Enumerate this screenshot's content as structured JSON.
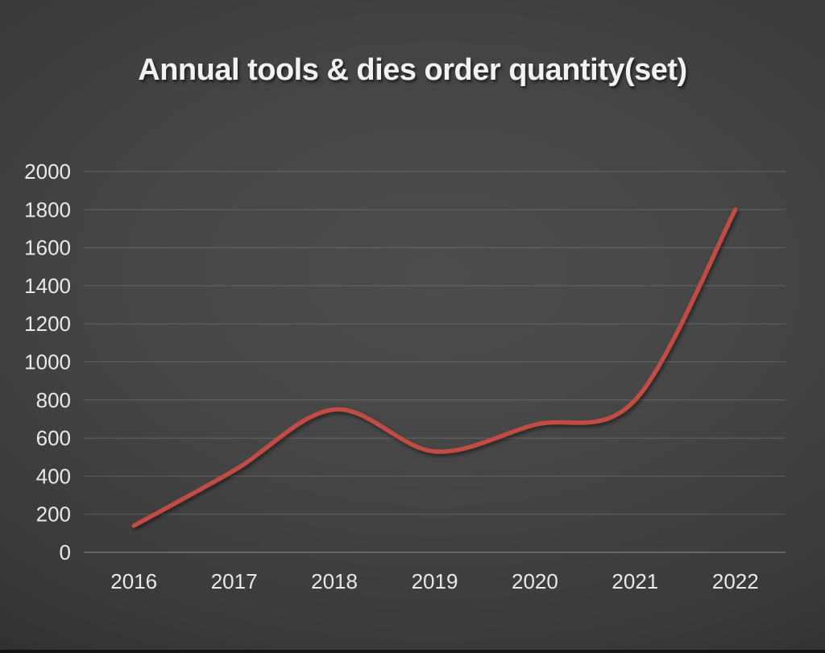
{
  "chart_data": {
    "type": "line",
    "title": "Annual tools & dies order quantity(set)",
    "categories": [
      "2016",
      "2017",
      "2018",
      "2019",
      "2020",
      "2021",
      "2022"
    ],
    "values": [
      140,
      430,
      750,
      530,
      670,
      800,
      1800
    ],
    "xlabel": "",
    "ylabel": "",
    "ylim": [
      0,
      2000
    ],
    "y_ticks": [
      0,
      200,
      400,
      600,
      800,
      1000,
      1200,
      1400,
      1600,
      1800,
      2000
    ],
    "grid": true,
    "legend": false,
    "smooth": true,
    "colors": {
      "line": "#c24b44",
      "label_text": "#e9e9e9",
      "title_text": "#f2f2f2",
      "background_center": "#4c4c4c",
      "background_edge": "#1f1f1f",
      "gridline": "#6b6b6b"
    }
  }
}
